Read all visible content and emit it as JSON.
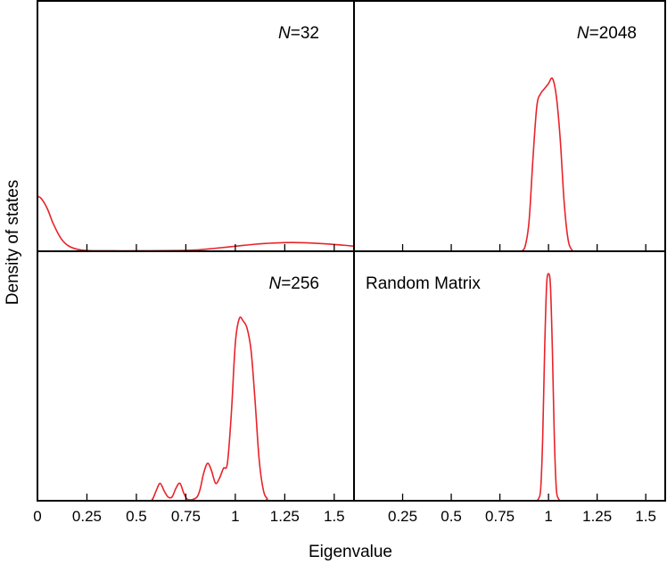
{
  "chart_data": {
    "type": "line",
    "xlabel": "Eigenvalue",
    "ylabel": "Density of states",
    "xlim": [
      0,
      1.6
    ],
    "ylim": [
      0,
      1
    ],
    "line_color": "#e8232a",
    "grid": false,
    "panels": [
      {
        "id": "n32",
        "label_prefix": "N",
        "label_suffix": "=32",
        "position": "top-left",
        "points": [
          [
            0,
            0.22
          ],
          [
            0.02,
            0.21
          ],
          [
            0.05,
            0.17
          ],
          [
            0.08,
            0.11
          ],
          [
            0.12,
            0.05
          ],
          [
            0.16,
            0.02
          ],
          [
            0.22,
            0.005
          ],
          [
            0.3,
            0.002
          ],
          [
            0.5,
            0.002
          ],
          [
            0.7,
            0.003
          ],
          [
            0.8,
            0.005
          ],
          [
            0.9,
            0.012
          ],
          [
            1.0,
            0.02
          ],
          [
            1.1,
            0.028
          ],
          [
            1.2,
            0.033
          ],
          [
            1.28,
            0.035
          ],
          [
            1.35,
            0.034
          ],
          [
            1.45,
            0.03
          ],
          [
            1.55,
            0.024
          ],
          [
            1.6,
            0.02
          ]
        ]
      },
      {
        "id": "n2048",
        "label_prefix": "N",
        "label_suffix": "=2048",
        "position": "top-right",
        "points": [
          [
            0.86,
            0
          ],
          [
            0.88,
            0.02
          ],
          [
            0.9,
            0.12
          ],
          [
            0.92,
            0.37
          ],
          [
            0.94,
            0.58
          ],
          [
            0.96,
            0.63
          ],
          [
            0.98,
            0.65
          ],
          [
            1.0,
            0.67
          ],
          [
            1.02,
            0.69
          ],
          [
            1.04,
            0.62
          ],
          [
            1.06,
            0.45
          ],
          [
            1.08,
            0.2
          ],
          [
            1.1,
            0.05
          ],
          [
            1.12,
            0.005
          ],
          [
            1.14,
            0
          ]
        ]
      },
      {
        "id": "n256",
        "label_prefix": "N",
        "label_suffix": "=256",
        "position": "bottom-left",
        "points": [
          [
            0,
            0
          ],
          [
            0.55,
            0
          ],
          [
            0.58,
            0.005
          ],
          [
            0.6,
            0.04
          ],
          [
            0.62,
            0.07
          ],
          [
            0.64,
            0.04
          ],
          [
            0.66,
            0.015
          ],
          [
            0.68,
            0.015
          ],
          [
            0.7,
            0.05
          ],
          [
            0.72,
            0.07
          ],
          [
            0.74,
            0.03
          ],
          [
            0.76,
            0.005
          ],
          [
            0.8,
            0.01
          ],
          [
            0.82,
            0.04
          ],
          [
            0.84,
            0.11
          ],
          [
            0.86,
            0.15
          ],
          [
            0.88,
            0.12
          ],
          [
            0.9,
            0.07
          ],
          [
            0.92,
            0.09
          ],
          [
            0.94,
            0.13
          ],
          [
            0.96,
            0.15
          ],
          [
            0.98,
            0.35
          ],
          [
            1.0,
            0.63
          ],
          [
            1.02,
            0.73
          ],
          [
            1.04,
            0.72
          ],
          [
            1.06,
            0.69
          ],
          [
            1.08,
            0.6
          ],
          [
            1.1,
            0.4
          ],
          [
            1.12,
            0.17
          ],
          [
            1.14,
            0.05
          ],
          [
            1.16,
            0.01
          ],
          [
            1.2,
            0
          ],
          [
            1.6,
            0
          ]
        ]
      },
      {
        "id": "random",
        "label_prefix": "",
        "label_suffix": "Random Matrix",
        "position": "bottom-right",
        "points": [
          [
            0.94,
            0
          ],
          [
            0.95,
            0.01
          ],
          [
            0.96,
            0.05
          ],
          [
            0.97,
            0.25
          ],
          [
            0.98,
            0.6
          ],
          [
            0.99,
            0.86
          ],
          [
            1.0,
            0.91
          ],
          [
            1.01,
            0.86
          ],
          [
            1.02,
            0.6
          ],
          [
            1.03,
            0.25
          ],
          [
            1.04,
            0.05
          ],
          [
            1.05,
            0.01
          ],
          [
            1.06,
            0
          ]
        ]
      }
    ],
    "x_ticks_left": [
      0,
      0.25,
      0.5,
      0.75,
      1,
      1.25,
      1.5
    ],
    "x_tick_labels_left": [
      "0",
      "0.25",
      "0.5",
      "0.75",
      "1",
      "1.25",
      "1.5"
    ],
    "x_ticks_right": [
      0.25,
      0.5,
      0.75,
      1,
      1.25,
      1.5
    ],
    "x_tick_labels_right": [
      "0.25",
      "0.5",
      "0.75",
      "1",
      "1.25",
      "1.5"
    ]
  }
}
